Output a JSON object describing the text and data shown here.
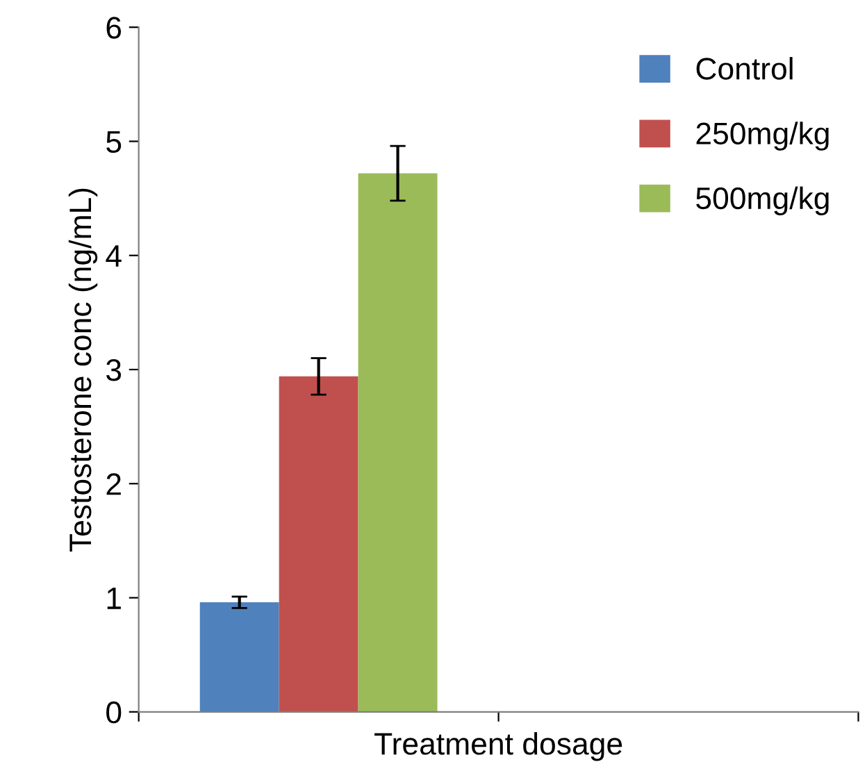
{
  "chart_data": {
    "type": "bar",
    "xlabel": "Treatment dosage",
    "ylabel": "Testosterone conc (ng/mL)",
    "categories": [
      null,
      null
    ],
    "series": [
      {
        "name": "Control",
        "color": "#4f81bd",
        "values": [
          0.96,
          null
        ],
        "errors": [
          0.05,
          null
        ]
      },
      {
        "name": "250mg/kg",
        "color": "#c0504d",
        "values": [
          2.94,
          null
        ],
        "errors": [
          0.16,
          null
        ]
      },
      {
        "name": "500mg/kg",
        "color": "#9bbb59",
        "values": [
          4.72,
          null
        ],
        "errors": [
          0.24,
          null
        ]
      }
    ],
    "ylim": [
      0,
      6
    ],
    "yticks": [
      0,
      1,
      2,
      3,
      4,
      5,
      6
    ],
    "grid": false,
    "legend": "top right"
  }
}
